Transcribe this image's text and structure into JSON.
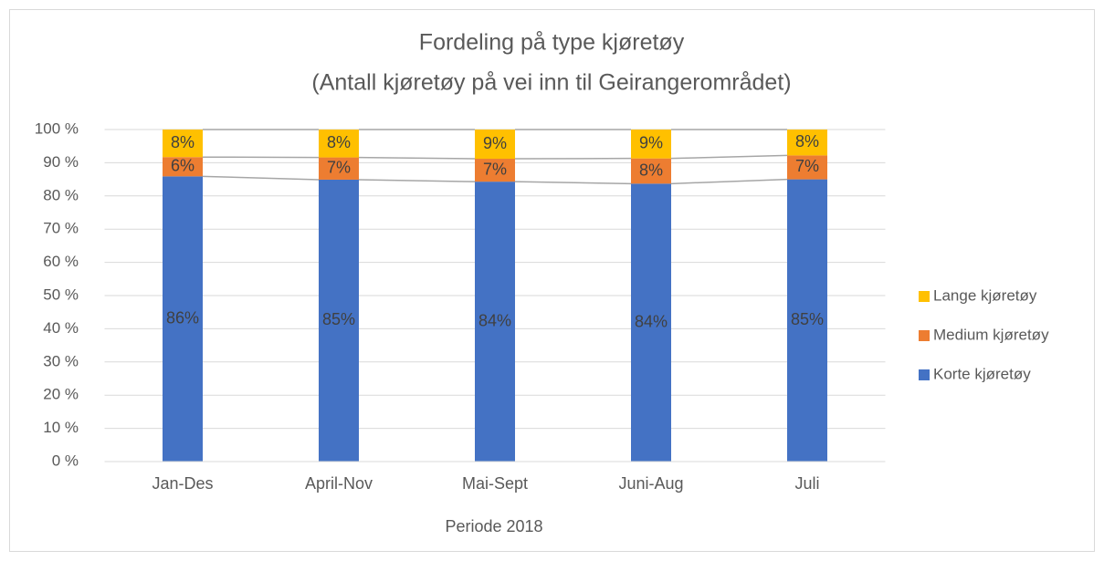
{
  "chart_data": {
    "type": "stacked_bar",
    "title": "Fordeling på type kjøretøy",
    "subtitle": "(Antall kjøretøy på vei inn til Geirangerområdet)",
    "x_label": "Periode 2018",
    "categories": [
      "Jan-Des",
      "April-Nov",
      "Mai-Sept",
      "Juni-Aug",
      "Juli"
    ],
    "series": [
      {
        "name": "Korte kjøretøy",
        "color": "#4472c4",
        "values": [
          85.9,
          84.9,
          84.3,
          83.7,
          85.0
        ],
        "value_labels": [
          "86%",
          "85%",
          "84%",
          "84%",
          "85%"
        ]
      },
      {
        "name": "Medium kjøretøy",
        "color": "#ed7d31",
        "values": [
          5.8,
          6.7,
          6.9,
          7.6,
          7.2
        ],
        "value_labels": [
          "6%",
          "7%",
          "7%",
          "8%",
          "7%"
        ]
      },
      {
        "name": "Lange kjøretøy",
        "color": "#ffc000",
        "values": [
          8.3,
          8.4,
          8.8,
          8.7,
          7.8
        ],
        "value_labels": [
          "8%",
          "8%",
          "9%",
          "9%",
          "8%"
        ]
      }
    ],
    "ylim": [
      0,
      100
    ],
    "yticks": [
      {
        "value": 0,
        "label": "0 %"
      },
      {
        "value": 10,
        "label": "10 %"
      },
      {
        "value": 20,
        "label": "20 %"
      },
      {
        "value": 30,
        "label": "30 %"
      },
      {
        "value": 40,
        "label": "40 %"
      },
      {
        "value": 50,
        "label": "50 %"
      },
      {
        "value": 60,
        "label": "60 %"
      },
      {
        "value": 70,
        "label": "70 %"
      },
      {
        "value": 80,
        "label": "80 %"
      },
      {
        "value": 90,
        "label": "90 %"
      },
      {
        "value": 100,
        "label": "100 %"
      }
    ],
    "grid": true,
    "legend": "right"
  }
}
